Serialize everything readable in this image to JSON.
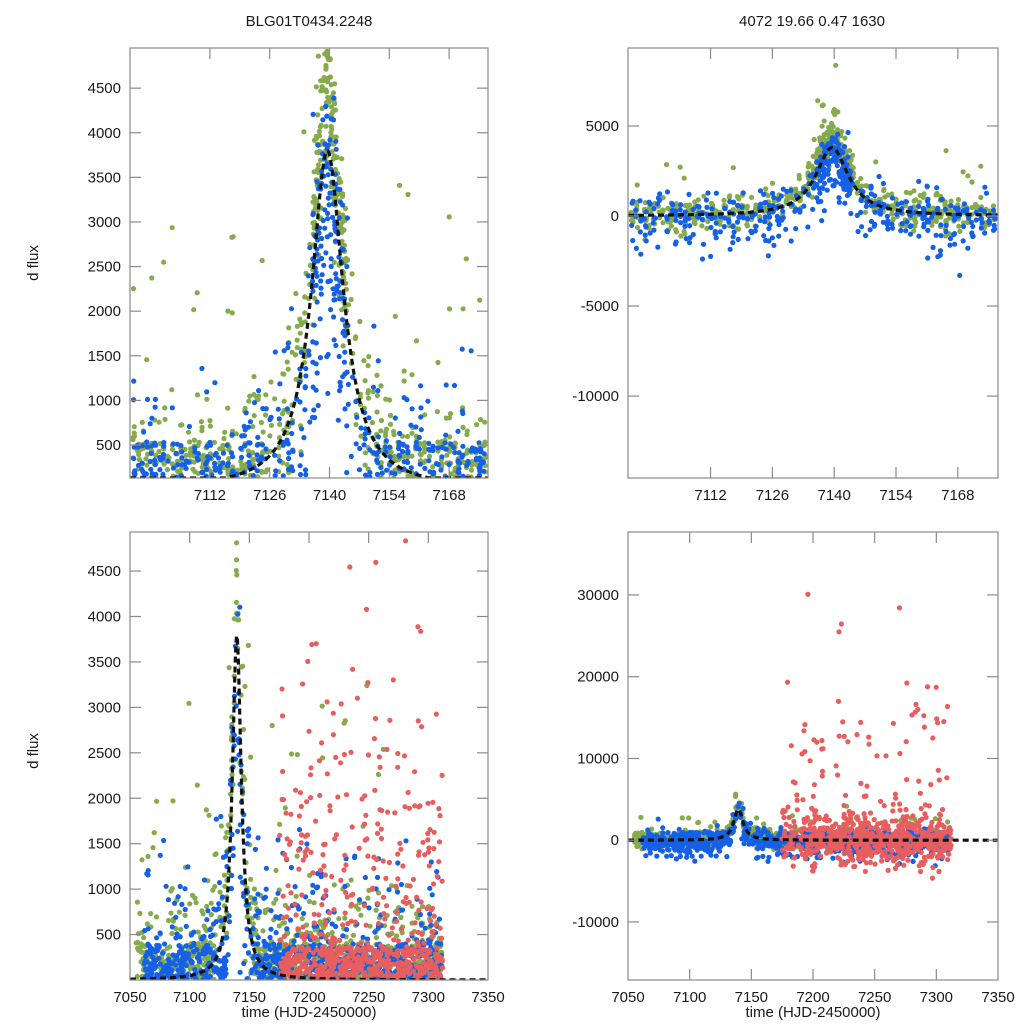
{
  "figure": {
    "title_left": "BLG01T0434.2248",
    "title_right": "4072  19.66  0.47  1630",
    "colors": {
      "green": "#86ab4c",
      "blue": "#1560e6",
      "red": "#e85e5e",
      "model": "#111111",
      "frame": "#8a8a8a"
    }
  },
  "chart_data": [
    {
      "id": "top-left",
      "type": "scatter",
      "title": "BLG01T0434.2248",
      "xlabel": "",
      "ylabel": "d flux",
      "xlim": [
        7093.3,
        7177.1
      ],
      "ylim": [
        130,
        4950
      ],
      "xticks": [
        7112,
        7126,
        7140,
        7154,
        7168
      ],
      "yticks": [
        500,
        1000,
        1500,
        2000,
        2500,
        3000,
        3500,
        4000,
        4500
      ],
      "grid": false,
      "model": {
        "t0": 7139.5,
        "peak": 3800,
        "base": 130,
        "width": 4.5,
        "style": "dashed"
      },
      "series": [
        {
          "name": "green",
          "color": "#86ab4c",
          "x_range": [
            7094,
            7177
          ],
          "description": "dense scatter; peak ~4500+ near 7138-7141"
        },
        {
          "name": "blue",
          "color": "#1560e6",
          "x_range": [
            7094,
            7177
          ],
          "description": "scatter, peak ~3800 near 7139"
        }
      ]
    },
    {
      "id": "top-right",
      "type": "scatter",
      "title": "4072  19.66  0.47  1630",
      "xlabel": "",
      "ylabel": "",
      "xlim": [
        7093.3,
        7177.1
      ],
      "ylim": [
        -14550,
        9330
      ],
      "xticks": [
        7112,
        7126,
        7140,
        7154,
        7168
      ],
      "yticks": [
        5000,
        0,
        -5000,
        -10000
      ],
      "grid": false,
      "model": {
        "t0": 7139.5,
        "peak": 3800,
        "base": 0,
        "width": 4.5,
        "style": "dashed"
      },
      "series": [
        {
          "name": "green",
          "color": "#86ab4c",
          "x_range": [
            7094,
            7177
          ]
        },
        {
          "name": "blue",
          "color": "#1560e6",
          "x_range": [
            7094,
            7177
          ]
        }
      ]
    },
    {
      "id": "bottom-left",
      "type": "scatter",
      "title": "",
      "xlabel": "time (HJD-2450000)",
      "ylabel": "d flux",
      "xlim": [
        7050,
        7350
      ],
      "ylim": [
        0,
        4930
      ],
      "xticks": [
        7050,
        7100,
        7150,
        7200,
        7250,
        7300,
        7350
      ],
      "yticks": [
        500,
        1000,
        1500,
        2000,
        2500,
        3000,
        3500,
        4000,
        4500
      ],
      "grid": false,
      "model": {
        "t0": 7139.5,
        "peak": 3800,
        "base": 0,
        "width": 4.5,
        "style": "dashed"
      },
      "series": [
        {
          "name": "green",
          "color": "#86ab4c",
          "x_range": [
            7055,
            7312
          ]
        },
        {
          "name": "blue",
          "color": "#1560e6",
          "x_range": [
            7062,
            7312
          ]
        },
        {
          "name": "red",
          "color": "#e85e5e",
          "x_range": [
            7175,
            7312
          ]
        }
      ]
    },
    {
      "id": "bottom-right",
      "type": "scatter",
      "title": "",
      "xlabel": "time (HJD-2450000)",
      "ylabel": "",
      "xlim": [
        7050,
        7350
      ],
      "ylim": [
        -17100,
        37700
      ],
      "xticks": [
        7050,
        7100,
        7150,
        7200,
        7250,
        7300,
        7350
      ],
      "yticks": [
        30000,
        20000,
        10000,
        0,
        -10000
      ],
      "grid": false,
      "model": {
        "t0": 7139.5,
        "peak": 3800,
        "base": 0,
        "width": 4.5,
        "style": "dashed"
      },
      "series": [
        {
          "name": "green",
          "color": "#86ab4c",
          "x_range": [
            7055,
            7312
          ]
        },
        {
          "name": "blue",
          "color": "#1560e6",
          "x_range": [
            7062,
            7312
          ]
        },
        {
          "name": "red",
          "color": "#e85e5e",
          "x_range": [
            7175,
            7312
          ]
        }
      ]
    }
  ],
  "labels": {
    "ylabel_top": "d flux",
    "ylabel_bottom": "d flux",
    "xlabel_left": "time (HJD-2450000)",
    "xlabel_right": "time (HJD-2450000)"
  }
}
